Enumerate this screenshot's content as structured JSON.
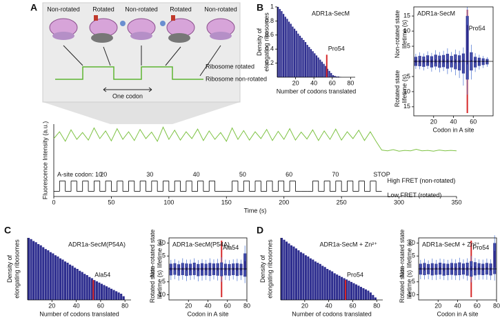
{
  "panel_labels": [
    "A",
    "B",
    "C",
    "D"
  ],
  "diagram": {
    "states": [
      "Non-rotated",
      "Rotated",
      "Non-rotated",
      "Rotated",
      "Non-rotated"
    ],
    "levels": [
      "Ribosome rotated",
      "Ribosome non-rotated"
    ],
    "codon": "One codon"
  },
  "chart_data": [
    {
      "type": "line",
      "xlabel": "Time (s)",
      "ylabel": "Fluorescence Intensity (a.u.)",
      "xlim": [
        0,
        350
      ],
      "xticks": [
        0,
        50,
        100,
        150,
        200,
        250,
        300,
        350
      ],
      "ylim": [
        -0.9,
        1
      ],
      "y2lim": [
        -0.5,
        6.5
      ],
      "x": [
        0,
        5,
        10,
        15,
        20,
        25,
        30,
        35,
        40,
        45,
        50,
        55,
        60,
        65,
        70,
        75,
        80,
        85,
        90,
        95,
        100,
        105,
        110,
        115,
        120,
        125,
        130,
        135,
        140,
        145,
        150,
        155,
        160,
        165,
        170,
        175,
        180,
        185,
        190,
        195,
        200,
        205,
        210,
        215,
        220,
        225,
        230,
        235,
        240,
        245,
        250,
        255,
        260,
        265,
        270,
        275,
        280,
        285,
        290,
        295,
        300,
        305,
        310,
        315,
        320,
        325,
        330,
        335,
        340,
        345,
        350
      ],
      "series": [
        {
          "color": "#7dc242",
          "values": [
            0.62,
            0.8,
            0.55,
            0.85,
            0.6,
            0.78,
            0.58,
            0.9,
            0.62,
            0.82,
            0.56,
            0.88,
            0.6,
            0.8,
            0.57,
            0.86,
            0.62,
            0.79,
            0.55,
            0.92,
            0.6,
            0.84,
            0.58,
            0.8,
            0.62,
            0.87,
            0.57,
            0.82,
            0.6,
            0.78,
            0.55,
            0.9,
            0.6,
            0.83,
            0.58,
            0.8,
            0.62,
            0.86,
            0.57,
            0.81,
            0.6,
            0.88,
            0.58,
            0.79,
            0.61,
            0.85,
            0.57,
            0.82,
            0.6,
            0.87,
            0.58,
            0.8,
            0.62,
            0.84,
            0.57,
            0.8,
            0.55,
            0.32,
            0.3,
            0.33,
            0.29,
            0.31,
            0.3,
            0.34,
            0.3,
            0.31,
            0.29,
            0.32,
            0.3,
            0.31,
            0.3
          ]
        },
        {
          "color": "#000000",
          "axis": "y2",
          "values": [
            0,
            1,
            0,
            1,
            0,
            1,
            0,
            1,
            0,
            1,
            0,
            1,
            0,
            1,
            0,
            1,
            0,
            1,
            0,
            1,
            0,
            1,
            0,
            1,
            0,
            1,
            0,
            1,
            0,
            0,
            0,
            1,
            0,
            1,
            0,
            1,
            0,
            1,
            0,
            1,
            0,
            1,
            0,
            0,
            0,
            1,
            0,
            1,
            0,
            1,
            0,
            1,
            0,
            1,
            0,
            1,
            0,
            null,
            null,
            null,
            null,
            null,
            null,
            null,
            null,
            null,
            null,
            null,
            null,
            null,
            null
          ]
        }
      ],
      "codon_labels": [
        "A-site codon: 10",
        "20",
        "30",
        "40",
        "50",
        "60",
        "70",
        "STOP"
      ],
      "state_labels": [
        "High FRET (non-rotated)",
        "Low FRET (rotated)"
      ]
    },
    {
      "type": "histogram",
      "title": "ADR1a-SecM",
      "xlabel": "Number of codons translated",
      "ylabel": "Density of elongating ribosomes",
      "color": "#2e2e8f",
      "xlim": [
        0,
        85
      ],
      "xticks": [
        20,
        40,
        60,
        80
      ],
      "ylim": [
        0,
        1
      ],
      "yticks": [
        0.2,
        0.4,
        0.6,
        0.8,
        1
      ],
      "bins": [
        0,
        2,
        4,
        6,
        8,
        10,
        12,
        14,
        16,
        18,
        20,
        22,
        24,
        26,
        28,
        30,
        32,
        34,
        36,
        38,
        40,
        42,
        44,
        46,
        48,
        50,
        52,
        54,
        56,
        58,
        60,
        62,
        64,
        66,
        68,
        70,
        72,
        74,
        76,
        78,
        80
      ],
      "counts": [
        1,
        0.97,
        0.94,
        0.9,
        0.86,
        0.83,
        0.79,
        0.76,
        0.72,
        0.69,
        0.66,
        0.62,
        0.59,
        0.56,
        0.53,
        0.5,
        0.46,
        0.43,
        0.4,
        0.37,
        0.34,
        0.31,
        0.28,
        0.25,
        0.22,
        0.19,
        0.16,
        0.12,
        0.09,
        0.06,
        0.03,
        0.02,
        0.01,
        0.01,
        0.005,
        0,
        0,
        0,
        0,
        0
      ],
      "highlight": {
        "label": "Pro54",
        "x": 54,
        "color": "#d62728"
      }
    },
    {
      "type": "mirrored-bar",
      "title": "ADR1a-SecM",
      "xlabel": "Codon in A site",
      "ylabels": [
        "Non-rotated state lifetime (s)",
        "Rotated state lifetime (s)"
      ],
      "xlim": [
        0,
        80
      ],
      "xticks": [
        20,
        40,
        60
      ],
      "ylim": [
        -18,
        18
      ],
      "yticks": [
        5,
        10,
        15,
        {
          "value": -5,
          "label": "5"
        },
        {
          "value": -10,
          "label": "10"
        },
        {
          "value": -15,
          "label": "15"
        }
      ],
      "x": [
        2,
        6,
        10,
        14,
        18,
        22,
        26,
        30,
        34,
        38,
        42,
        46,
        50,
        54,
        58,
        62,
        66,
        70,
        74
      ],
      "error_color": "#5b7fd6",
      "series": [
        {
          "color": "#2e2e8f",
          "values": [
            1.5,
            1.8,
            1.6,
            2,
            1.7,
            2.2,
            1.9,
            2.1,
            2.5,
            1.8,
            2.3,
            2,
            2.6,
            15,
            3,
            1.5,
            1.2,
            1,
            0.8
          ],
          "errors": [
            1,
            1.2,
            1,
            1.3,
            1.1,
            1.5,
            1.2,
            1.4,
            1.8,
            1.3,
            1.6,
            1.5,
            2,
            3,
            2.5,
            1.2,
            1,
            0.8,
            0.6
          ]
        },
        {
          "color": "#2e2e8f",
          "values": [
            1.5,
            1.6,
            1.8,
            1.5,
            2,
            1.7,
            2.1,
            1.9,
            2.4,
            2,
            2.6,
            3,
            4,
            6,
            3,
            2,
            1.5,
            1.2,
            1
          ],
          "errors": [
            1,
            1,
            1.2,
            1,
            1.4,
            1.1,
            1.5,
            1.3,
            1.8,
            1.5,
            2,
            2.5,
            4,
            5,
            3,
            1.5,
            1.2,
            1,
            0.8
          ]
        }
      ],
      "highlight": {
        "label": "Pro54",
        "x": 54,
        "color": "#d62728"
      }
    },
    {
      "type": "histogram",
      "title": "ADR1a-SecM(P54A)",
      "xlabel": "Number of codons translated",
      "ylabel": "Density of elongating ribosomes",
      "color": "#2e2e8f",
      "xlim": [
        0,
        85
      ],
      "xticks": [
        20,
        40,
        60,
        80
      ],
      "ylim": [
        0,
        1
      ],
      "bins": [
        0,
        2,
        4,
        6,
        8,
        10,
        12,
        14,
        16,
        18,
        20,
        22,
        24,
        26,
        28,
        30,
        32,
        34,
        36,
        38,
        40,
        42,
        44,
        46,
        48,
        50,
        52,
        54,
        56,
        58,
        60,
        62,
        64,
        66,
        68,
        70,
        72,
        74,
        76,
        78,
        80
      ],
      "counts": [
        1,
        0.98,
        0.95,
        0.93,
        0.9,
        0.88,
        0.85,
        0.82,
        0.8,
        0.77,
        0.75,
        0.72,
        0.7,
        0.67,
        0.65,
        0.62,
        0.6,
        0.57,
        0.55,
        0.52,
        0.5,
        0.47,
        0.45,
        0.42,
        0.4,
        0.37,
        0.35,
        0.32,
        0.3,
        0.28,
        0.26,
        0.24,
        0.22,
        0.2,
        0.18,
        0.16,
        0.14,
        0.12,
        0.1,
        0.06
      ],
      "highlight": {
        "label": "Ala54",
        "x": 54,
        "color": "#d62728"
      }
    },
    {
      "type": "mirrored-bar",
      "title": "ADR1a-SecM(P54A)",
      "xlabel": "Codon in A site",
      "ylabels": [
        "Non-rotated state lifetime (s)",
        "Rotated state lifetime (s)"
      ],
      "xlim": [
        0,
        80
      ],
      "xticks": [
        20,
        40,
        60,
        80
      ],
      "ylim": [
        -12,
        12
      ],
      "yticks": [
        5,
        10,
        {
          "value": -5,
          "label": "5"
        },
        {
          "value": -10,
          "label": "10"
        }
      ],
      "x": [
        2,
        6,
        10,
        14,
        18,
        22,
        26,
        30,
        34,
        38,
        42,
        46,
        50,
        54,
        58,
        62,
        66,
        70,
        74,
        78
      ],
      "error_color": "#5b7fd6",
      "series": [
        {
          "color": "#2e2e8f",
          "values": [
            2,
            2.2,
            1.8,
            2.3,
            2.1,
            2,
            2.4,
            1.9,
            2.2,
            2,
            2.3,
            2.1,
            2.2,
            2.5,
            2,
            1.9,
            2.1,
            2.2,
            2,
            6
          ],
          "errors": [
            1.5,
            1.6,
            1.4,
            1.8,
            1.5,
            1.6,
            1.7,
            1.5,
            1.6,
            1.5,
            1.8,
            1.6,
            1.7,
            2,
            1.6,
            1.5,
            1.6,
            1.7,
            1.6,
            3
          ]
        },
        {
          "color": "#2e2e8f",
          "values": [
            2.5,
            2.3,
            2.6,
            2.4,
            2.7,
            2.5,
            2.4,
            2.8,
            2.6,
            2.5,
            2.7,
            2.4,
            2.6,
            2.8,
            2.5,
            2.6,
            2.4,
            2.7,
            2.5,
            3
          ],
          "errors": [
            1.8,
            1.7,
            1.9,
            1.8,
            2,
            1.8,
            1.7,
            2,
            1.9,
            1.8,
            2,
            1.7,
            1.9,
            2.2,
            1.8,
            1.9,
            1.7,
            2,
            1.8,
            2.5
          ]
        }
      ],
      "highlight": {
        "label": "Ala54",
        "x": 54,
        "color": "#d62728"
      }
    },
    {
      "type": "histogram",
      "title": "ADR1a-SecM + Zn²⁺",
      "xlabel": "Number of codons translated",
      "ylabel": "Density of elongating ribosomes",
      "color": "#2e2e8f",
      "xlim": [
        0,
        85
      ],
      "xticks": [
        20,
        40,
        60,
        80
      ],
      "ylim": [
        0,
        1
      ],
      "bins": [
        0,
        2,
        4,
        6,
        8,
        10,
        12,
        14,
        16,
        18,
        20,
        22,
        24,
        26,
        28,
        30,
        32,
        34,
        36,
        38,
        40,
        42,
        44,
        46,
        48,
        50,
        52,
        54,
        56,
        58,
        60,
        62,
        64,
        66,
        68,
        70,
        72,
        74,
        76,
        78,
        80
      ],
      "counts": [
        1,
        0.97,
        0.94,
        0.91,
        0.88,
        0.86,
        0.83,
        0.8,
        0.77,
        0.75,
        0.72,
        0.7,
        0.67,
        0.65,
        0.62,
        0.6,
        0.58,
        0.55,
        0.53,
        0.5,
        0.48,
        0.46,
        0.43,
        0.41,
        0.39,
        0.37,
        0.35,
        0.33,
        0.31,
        0.29,
        0.27,
        0.25,
        0.23,
        0.21,
        0.19,
        0.17,
        0.15,
        0.12,
        0.08,
        0.04
      ],
      "highlight": {
        "label": "Pro54",
        "x": 54,
        "color": "#d62728"
      }
    },
    {
      "type": "mirrored-bar",
      "title": "ADR1a-SecM + Zn²⁺",
      "xlabel": "Codon in A site",
      "ylabels": [
        "Non-rotated state lifetime (s)",
        "Rotated state lifetime (s)"
      ],
      "xlim": [
        0,
        80
      ],
      "xticks": [
        20,
        40,
        60,
        80
      ],
      "ylim": [
        -12,
        12
      ],
      "yticks": [
        5,
        10,
        {
          "value": -5,
          "label": "5"
        },
        {
          "value": -10,
          "label": "10"
        }
      ],
      "x": [
        2,
        6,
        10,
        14,
        18,
        22,
        26,
        30,
        34,
        38,
        42,
        46,
        50,
        54,
        58,
        62,
        66,
        70,
        74,
        78
      ],
      "error_color": "#5b7fd6",
      "series": [
        {
          "color": "#2e2e8f",
          "values": [
            2,
            2.3,
            1.9,
            2.2,
            2,
            2.4,
            2.1,
            2,
            2.3,
            2.2,
            2.5,
            2.1,
            2.4,
            3,
            2.6,
            2.2,
            2,
            2.3,
            2.1,
            10
          ],
          "errors": [
            1.5,
            1.6,
            1.4,
            1.8,
            1.5,
            1.6,
            1.7,
            1.5,
            1.6,
            1.5,
            1.8,
            1.6,
            1.7,
            2,
            1.6,
            1.5,
            1.6,
            1.7,
            1.6,
            3
          ]
        },
        {
          "color": "#2e2e8f",
          "values": [
            2.2,
            2.4,
            2.1,
            2.5,
            2.3,
            2.2,
            2.6,
            2.4,
            2.3,
            2.5,
            2.4,
            2.2,
            2.6,
            3,
            2.5,
            2.3,
            2.4,
            2.2,
            2.5,
            2
          ],
          "errors": [
            1.8,
            1.7,
            1.9,
            1.8,
            2,
            1.8,
            1.7,
            2,
            1.9,
            1.8,
            2,
            1.7,
            1.9,
            2.2,
            1.8,
            1.9,
            1.7,
            2,
            1.8,
            2.5
          ]
        }
      ],
      "highlight": {
        "label": "Pro54",
        "x": 54,
        "color": "#d62728"
      }
    }
  ]
}
